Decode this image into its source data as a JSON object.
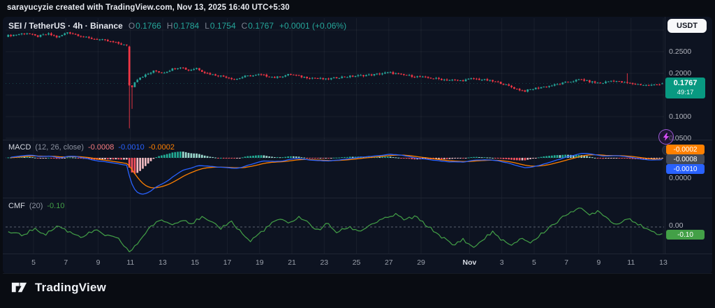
{
  "attribution": "sarayucyzie created with TradingView.com, Nov 13, 2025 16:40 UTC+5:30",
  "header": {
    "title": "SEI / TetherUS · 4h · Binance",
    "ohlc": [
      {
        "label": "O",
        "value": "0.1766"
      },
      {
        "label": "H",
        "value": "0.1784"
      },
      {
        "label": "L",
        "value": "0.1754"
      },
      {
        "label": "C",
        "value": "0.1767"
      }
    ],
    "change": "+0.0001 (+0.06%)",
    "currency_button": "USDT"
  },
  "colors": {
    "up": "#26a69a",
    "down": "#f23645",
    "up_badge": "#089981",
    "blue": "#2962ff",
    "orange": "#ff8000",
    "green": "#43a047",
    "hist_up": "#22ab94",
    "hist_up_fade": "#9bd8cd",
    "hist_dn": "#f7525f",
    "hist_dn_fade": "#f2bcc2",
    "gray_badge": "#444a57",
    "grid": "rgba(255,255,255,0.05)"
  },
  "price_scale": {
    "ticks": [
      {
        "label": "0.2500",
        "price": 0.25
      },
      {
        "label": "0.2000",
        "price": 0.2
      },
      {
        "label": "0.1000",
        "price": 0.1
      },
      {
        "label": "0.0500",
        "price": 0.05
      }
    ],
    "badge": {
      "price": "0.1767",
      "countdown": "49:17",
      "bg": "#089981"
    }
  },
  "macd": {
    "title": "MACD",
    "params": "(12, 26, close)",
    "values": [
      {
        "text": "-0.0008",
        "color": "#f77c80"
      },
      {
        "text": "-0.0010",
        "color": "#2962ff"
      },
      {
        "text": "-0.0002",
        "color": "#ff8000"
      }
    ],
    "badges": [
      {
        "text": "-0.0002",
        "bg": "#ff8000"
      },
      {
        "text": "-0.0008",
        "bg": "#444a57"
      },
      {
        "text": "-0.0010",
        "bg": "#2962ff"
      }
    ],
    "scale_label": "0.0000"
  },
  "cmf": {
    "title": "CMF",
    "params": "(20)",
    "value": "-0.10",
    "value_color": "#43a047",
    "badge": {
      "text": "-0.10",
      "bg": "#43a047"
    },
    "scale_label": "0.00"
  },
  "time_axis": {
    "labels": [
      {
        "text": "5",
        "t": 1
      },
      {
        "text": "7",
        "t": 3
      },
      {
        "text": "9",
        "t": 5
      },
      {
        "text": "11",
        "t": 7
      },
      {
        "text": "13",
        "t": 9
      },
      {
        "text": "15",
        "t": 11
      },
      {
        "text": "17",
        "t": 13
      },
      {
        "text": "19",
        "t": 15
      },
      {
        "text": "21",
        "t": 17
      },
      {
        "text": "23",
        "t": 19
      },
      {
        "text": "25",
        "t": 21
      },
      {
        "text": "27",
        "t": 23
      },
      {
        "text": "29",
        "t": 25
      },
      {
        "text": "Nov",
        "t": 28,
        "month": true
      },
      {
        "text": "3",
        "t": 30
      },
      {
        "text": "5",
        "t": 32
      },
      {
        "text": "7",
        "t": 34
      },
      {
        "text": "9",
        "t": 36
      },
      {
        "text": "11",
        "t": 38
      },
      {
        "text": "13",
        "t": 40
      }
    ]
  },
  "logo": {
    "text": "TradingView"
  },
  "chart_data": [
    {
      "type": "candlestick",
      "title": "SEI/USDT 4h Binance",
      "x_unit": "days since 2025-10-04 (Oct 5 = 1, Nov 13 = 40)",
      "t_range": [
        -0.733,
        39.95
      ],
      "candles_per_day": 6,
      "ylim": [
        0.05,
        0.33
      ],
      "grid": true,
      "yticks": [
        0.25,
        0.2,
        0.1,
        0.05
      ],
      "grid_prices": [
        0.3,
        0.25,
        0.2,
        0.15,
        0.1,
        0.05
      ],
      "close_anchors": [
        [
          -0.8,
          0.286
        ],
        [
          0.0,
          0.29
        ],
        [
          0.6,
          0.293
        ],
        [
          1.2,
          0.285
        ],
        [
          1.9,
          0.291
        ],
        [
          2.5,
          0.283
        ],
        [
          3.1,
          0.295
        ],
        [
          3.7,
          0.289
        ],
        [
          4.4,
          0.281
        ],
        [
          5.1,
          0.278
        ],
        [
          5.9,
          0.272
        ],
        [
          6.5,
          0.267
        ],
        [
          6.83,
          0.263
        ],
        [
          6.92,
          0.172
        ],
        [
          7.1,
          0.17
        ],
        [
          7.3,
          0.183
        ],
        [
          7.6,
          0.191
        ],
        [
          8.0,
          0.197
        ],
        [
          8.5,
          0.206
        ],
        [
          9.0,
          0.201
        ],
        [
          9.6,
          0.21
        ],
        [
          10.1,
          0.215
        ],
        [
          10.6,
          0.207
        ],
        [
          11.1,
          0.212
        ],
        [
          11.6,
          0.202
        ],
        [
          12.1,
          0.197
        ],
        [
          12.9,
          0.192
        ],
        [
          13.5,
          0.186
        ],
        [
          14.1,
          0.193
        ],
        [
          15.0,
          0.197
        ],
        [
          16.0,
          0.19
        ],
        [
          16.9,
          0.198
        ],
        [
          17.6,
          0.192
        ],
        [
          18.4,
          0.189
        ],
        [
          19.1,
          0.186
        ],
        [
          19.9,
          0.191
        ],
        [
          21.0,
          0.194
        ],
        [
          22.1,
          0.197
        ],
        [
          23.0,
          0.202
        ],
        [
          23.7,
          0.197
        ],
        [
          24.6,
          0.193
        ],
        [
          25.6,
          0.189
        ],
        [
          26.6,
          0.185
        ],
        [
          27.5,
          0.183
        ],
        [
          28.2,
          0.188
        ],
        [
          29.1,
          0.184
        ],
        [
          29.9,
          0.178
        ],
        [
          30.4,
          0.171
        ],
        [
          30.9,
          0.164
        ],
        [
          31.4,
          0.159
        ],
        [
          31.9,
          0.164
        ],
        [
          32.6,
          0.169
        ],
        [
          33.4,
          0.174
        ],
        [
          34.1,
          0.18
        ],
        [
          34.9,
          0.186
        ],
        [
          35.4,
          0.181
        ],
        [
          36.1,
          0.177
        ],
        [
          36.9,
          0.184
        ],
        [
          37.3,
          0.18
        ],
        [
          38.1,
          0.176
        ],
        [
          39.1,
          0.172
        ],
        [
          39.8,
          0.175
        ],
        [
          39.95,
          0.1767
        ]
      ],
      "overrides": [
        {
          "t": 6.92,
          "open": 0.262,
          "close": 0.172,
          "low": 0.073,
          "high": 0.264
        },
        {
          "t": 7.08,
          "close": 0.168,
          "low": 0.118
        },
        {
          "t": 37.8,
          "high": 0.2
        }
      ],
      "last": {
        "o": 0.1766,
        "h": 0.1784,
        "l": 0.1754,
        "c": 0.1767
      }
    },
    {
      "type": "macd",
      "params": [
        12,
        26,
        9
      ],
      "derived_from": "candlestick closes",
      "last": {
        "histogram": -0.0008,
        "macd": -0.001,
        "signal": -0.0002
      }
    },
    {
      "type": "line",
      "name": "CMF (20)",
      "last": -0.1,
      "ylim": [
        -0.4,
        0.35
      ],
      "anchors": [
        [
          -0.8,
          -0.06
        ],
        [
          0.3,
          -0.12
        ],
        [
          1.0,
          -0.03
        ],
        [
          1.8,
          -0.1
        ],
        [
          2.5,
          0.02
        ],
        [
          3.2,
          -0.07
        ],
        [
          4.0,
          -0.14
        ],
        [
          4.8,
          -0.05
        ],
        [
          5.5,
          -0.12
        ],
        [
          6.3,
          -0.18
        ],
        [
          6.95,
          -0.36
        ],
        [
          7.3,
          -0.28
        ],
        [
          7.8,
          -0.12
        ],
        [
          8.3,
          0.02
        ],
        [
          9.0,
          0.1
        ],
        [
          9.6,
          0.03
        ],
        [
          10.2,
          0.12
        ],
        [
          10.8,
          0.05
        ],
        [
          11.4,
          0.14
        ],
        [
          12.0,
          0.06
        ],
        [
          12.6,
          -0.02
        ],
        [
          13.2,
          0.09
        ],
        [
          13.8,
          -0.06
        ],
        [
          14.4,
          -0.21
        ],
        [
          15.0,
          -0.09
        ],
        [
          15.6,
          0.02
        ],
        [
          16.2,
          0.12
        ],
        [
          16.8,
          0.04
        ],
        [
          17.4,
          0.15
        ],
        [
          18.0,
          0.06
        ],
        [
          18.6,
          -0.05
        ],
        [
          19.2,
          0.05
        ],
        [
          19.8,
          -0.08
        ],
        [
          20.5,
          0.0
        ],
        [
          21.2,
          -0.06
        ],
        [
          22.0,
          0.05
        ],
        [
          22.8,
          0.12
        ],
        [
          23.4,
          0.18
        ],
        [
          24.0,
          0.1
        ],
        [
          24.6,
          0.15
        ],
        [
          25.2,
          0.05
        ],
        [
          25.8,
          -0.06
        ],
        [
          26.4,
          -0.16
        ],
        [
          27.0,
          -0.27
        ],
        [
          27.6,
          -0.17
        ],
        [
          28.2,
          -0.3
        ],
        [
          28.8,
          -0.19
        ],
        [
          29.4,
          -0.07
        ],
        [
          30.0,
          -0.18
        ],
        [
          30.6,
          -0.28
        ],
        [
          31.2,
          -0.15
        ],
        [
          31.8,
          -0.23
        ],
        [
          32.4,
          -0.11
        ],
        [
          33.0,
          0.01
        ],
        [
          33.6,
          0.1
        ],
        [
          34.2,
          0.22
        ],
        [
          34.8,
          0.27
        ],
        [
          35.4,
          0.17
        ],
        [
          36.0,
          0.24
        ],
        [
          36.6,
          0.11
        ],
        [
          37.2,
          0.03
        ],
        [
          37.8,
          0.14
        ],
        [
          38.4,
          0.05
        ],
        [
          39.0,
          -0.05
        ],
        [
          39.6,
          -0.09
        ],
        [
          39.95,
          -0.1
        ]
      ]
    }
  ]
}
